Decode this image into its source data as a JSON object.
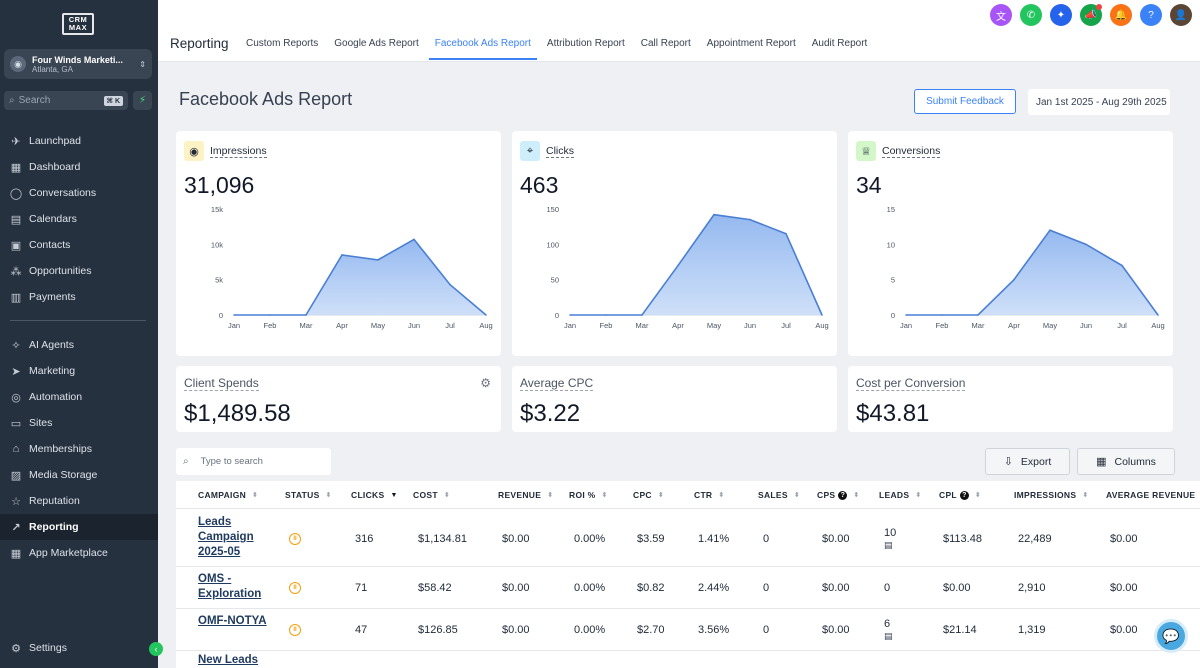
{
  "app": {
    "logo_top": "CRM",
    "logo_bottom": "MAX"
  },
  "location": {
    "name": "Four Winds Marketi...",
    "sub": "Atlanta, GA"
  },
  "sidebar_search": {
    "placeholder": "Search",
    "shortcut": "⌘ K"
  },
  "nav_primary": [
    {
      "label": "Launchpad",
      "icon": "rocket-icon"
    },
    {
      "label": "Dashboard",
      "icon": "grid-icon"
    },
    {
      "label": "Conversations",
      "icon": "chat-icon"
    },
    {
      "label": "Calendars",
      "icon": "calendar-icon"
    },
    {
      "label": "Contacts",
      "icon": "contacts-icon"
    },
    {
      "label": "Opportunities",
      "icon": "opportunities-icon"
    },
    {
      "label": "Payments",
      "icon": "payments-icon"
    }
  ],
  "nav_secondary": [
    {
      "label": "AI Agents",
      "icon": "sparkle-icon"
    },
    {
      "label": "Marketing",
      "icon": "send-icon"
    },
    {
      "label": "Automation",
      "icon": "automation-icon"
    },
    {
      "label": "Sites",
      "icon": "sites-icon"
    },
    {
      "label": "Memberships",
      "icon": "memberships-icon"
    },
    {
      "label": "Media Storage",
      "icon": "media-icon"
    },
    {
      "label": "Reputation",
      "icon": "star-icon"
    },
    {
      "label": "Reporting",
      "icon": "reporting-icon"
    },
    {
      "label": "App Marketplace",
      "icon": "marketplace-icon"
    }
  ],
  "settings_label": "Settings",
  "header": {
    "title": "Reporting",
    "tabs": [
      "Custom Reports",
      "Google Ads Report",
      "Facebook Ads Report",
      "Attribution Report",
      "Call Report",
      "Appointment Report",
      "Audit Report"
    ],
    "active_tab": 2,
    "icon_colors": [
      "#a855f7",
      "#22c55e",
      "#2563eb",
      "#16a34a",
      "#f97316",
      "#3b82f6"
    ]
  },
  "page": {
    "title": "Facebook Ads Report",
    "feedback_button": "Submit Feedback",
    "date_range": "Jan 1st 2025 - Aug 29th 2025"
  },
  "metrics": [
    {
      "label": "Impressions",
      "value": "31,096",
      "icon": "eye-icon",
      "icon_bg": "#fdf2c4"
    },
    {
      "label": "Clicks",
      "value": "463",
      "icon": "cursor-click-icon",
      "icon_bg": "#cfeefb"
    },
    {
      "label": "Conversions",
      "value": "34",
      "icon": "trophy-icon",
      "icon_bg": "#d4f7c9"
    }
  ],
  "chart_data": [
    {
      "type": "area",
      "title": "Impressions",
      "categories": [
        "Jan",
        "Feb",
        "Mar",
        "Apr",
        "May",
        "Jun",
        "Jul",
        "Aug"
      ],
      "values": [
        0,
        0,
        0,
        8500,
        7800,
        10700,
        4300,
        0
      ],
      "ylim": [
        0,
        15000
      ],
      "yticks": [
        "0",
        "5k",
        "10k",
        "15k"
      ]
    },
    {
      "type": "area",
      "title": "Clicks",
      "categories": [
        "Jan",
        "Feb",
        "Mar",
        "Apr",
        "May",
        "Jun",
        "Jul",
        "Aug"
      ],
      "values": [
        0,
        0,
        0,
        70,
        142,
        135,
        115,
        0
      ],
      "ylim": [
        0,
        150
      ],
      "yticks": [
        "0",
        "50",
        "100",
        "150"
      ]
    },
    {
      "type": "area",
      "title": "Conversions",
      "categories": [
        "Jan",
        "Feb",
        "Mar",
        "Apr",
        "May",
        "Jun",
        "Jul",
        "Aug"
      ],
      "values": [
        0,
        0,
        0,
        5,
        12,
        10,
        7,
        0
      ],
      "ylim": [
        0,
        15
      ],
      "yticks": [
        "0",
        "5",
        "10",
        "15"
      ]
    }
  ],
  "summary": [
    {
      "label": "Client Spends",
      "value": "$1,489.58"
    },
    {
      "label": "Average CPC",
      "value": "$3.22"
    },
    {
      "label": "Cost per Conversion",
      "value": "$43.81"
    }
  ],
  "table": {
    "search_placeholder": "Type to search",
    "export_label": "Export",
    "columns_label": "Columns",
    "headers": [
      "CAMPAIGN",
      "STATUS",
      "CLICKS",
      "COST",
      "REVENUE",
      "ROI %",
      "CPC",
      "CTR",
      "SALES",
      "CPS",
      "LEADS",
      "CPL",
      "IMPRESSIONS",
      "AVERAGE REVENUE"
    ],
    "rows": [
      {
        "campaign": "Leads Campaign 2025-05",
        "clicks": "316",
        "cost": "$1,134.81",
        "revenue": "$0.00",
        "roi": "0.00%",
        "cpc": "$3.59",
        "ctr": "1.41%",
        "sales": "0",
        "cps": "$0.00",
        "leads": "10",
        "cpl": "$113.48",
        "impressions": "22,489",
        "avg_revenue": "$0.00"
      },
      {
        "campaign": "OMS - Exploration",
        "clicks": "71",
        "cost": "$58.42",
        "revenue": "$0.00",
        "roi": "0.00%",
        "cpc": "$0.82",
        "ctr": "2.44%",
        "sales": "0",
        "cps": "$0.00",
        "leads": "0",
        "cpl": "$0.00",
        "impressions": "2,910",
        "avg_revenue": "$0.00"
      },
      {
        "campaign": "OMF-NOTYA",
        "clicks": "47",
        "cost": "$126.85",
        "revenue": "$0.00",
        "roi": "0.00%",
        "cpc": "$2.70",
        "ctr": "3.56%",
        "sales": "0",
        "cps": "$0.00",
        "leads": "6",
        "cpl": "$21.14",
        "impressions": "1,319",
        "avg_revenue": "$0.00"
      },
      {
        "campaign": "New Leads"
      }
    ]
  }
}
